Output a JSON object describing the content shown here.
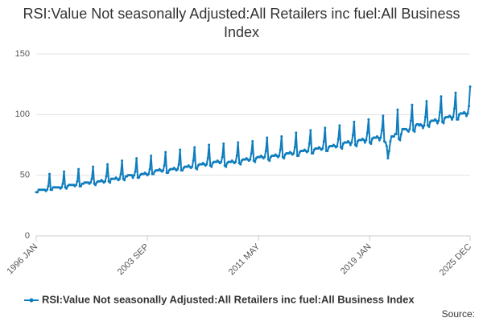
{
  "chart_data": {
    "type": "line",
    "title": "RSI:Value Not seasonally Adjusted:All Retailers inc fuel:All Business Index",
    "source": "Source:",
    "categories": [
      "1996 JAN",
      null,
      null,
      null,
      null,
      null,
      null,
      null,
      null,
      null,
      null,
      null,
      null,
      null,
      null,
      null,
      null,
      null,
      null,
      null,
      null,
      null,
      null,
      null,
      null,
      null,
      null,
      null,
      null,
      null,
      null,
      null,
      null,
      null,
      null,
      null,
      null,
      null,
      null,
      null,
      null,
      null,
      null,
      null,
      null,
      null,
      null,
      null,
      null,
      null,
      null,
      null,
      null,
      null,
      null,
      null,
      null,
      null,
      null,
      null,
      null,
      null,
      null,
      null,
      null,
      null,
      null,
      null,
      null,
      null,
      null,
      null,
      null,
      null,
      null,
      null,
      null,
      null,
      null,
      null,
      null,
      null,
      null,
      null,
      null,
      null,
      null,
      null,
      null,
      null,
      null,
      null,
      "2003 SEP",
      null,
      null,
      null,
      null,
      null,
      null,
      null,
      null,
      null,
      null,
      null,
      null,
      null,
      null,
      null,
      null,
      null,
      null,
      null,
      null,
      null,
      null,
      null,
      null,
      null,
      null,
      null,
      null,
      null,
      null,
      null,
      null,
      null,
      null,
      null,
      null,
      null,
      null,
      null,
      null,
      null,
      null,
      null,
      null,
      null,
      null,
      null,
      null,
      null,
      null,
      null,
      null,
      null,
      null,
      null,
      null,
      null,
      null,
      null,
      null,
      null,
      null,
      null,
      null,
      null,
      null,
      null,
      null,
      null,
      null,
      null,
      null,
      null,
      null,
      null,
      null,
      null,
      null,
      null,
      null,
      null,
      null,
      null,
      null,
      null,
      null,
      null,
      null,
      null,
      null,
      null,
      "2011 MAY",
      null,
      null,
      null,
      null,
      null,
      null,
      null,
      null,
      null,
      null,
      null,
      null,
      null,
      null,
      null,
      null,
      null,
      null,
      null,
      null,
      null,
      null,
      null,
      null,
      null,
      null,
      null,
      null,
      null,
      null,
      null,
      null,
      null,
      null,
      null,
      null,
      null,
      null,
      null,
      null,
      null,
      null,
      null,
      null,
      null,
      null,
      null,
      null,
      null,
      null,
      null,
      null,
      null,
      null,
      null,
      null,
      null,
      null,
      null,
      null,
      null,
      null,
      null,
      null,
      null,
      null,
      null,
      null,
      null,
      null,
      null,
      null,
      null,
      null,
      null,
      null,
      null,
      null,
      null,
      null,
      null,
      null,
      null,
      null,
      null,
      null,
      null,
      null,
      null,
      null,
      null,
      "2019 JAN",
      null,
      null,
      null,
      null,
      null,
      null,
      null,
      null,
      null,
      null,
      null,
      null,
      null,
      null,
      null,
      null,
      null,
      null,
      null,
      null,
      null,
      null,
      null,
      null,
      null,
      null,
      null,
      null,
      null,
      null,
      null,
      null,
      null,
      null,
      null,
      null,
      null,
      null,
      null,
      null,
      null,
      null,
      null,
      null,
      null,
      null,
      null,
      null,
      null,
      null,
      null,
      null,
      null,
      null,
      null,
      null,
      null,
      null,
      null,
      null,
      null,
      null,
      null,
      null,
      null,
      null,
      null,
      null,
      null,
      null,
      null,
      null,
      null,
      null,
      null,
      null,
      null,
      null,
      null,
      null,
      null,
      null,
      "2025 DEC"
    ],
    "series": [
      {
        "name": "RSI:Value Not seasonally Adjusted:All Retailers inc fuel:All Business Index",
        "color": "#0f7dbd",
        "values": [
          36,
          36,
          38,
          38,
          38,
          38,
          38,
          38,
          37,
          38,
          41,
          51,
          38,
          38,
          40,
          40,
          40,
          40,
          40,
          40,
          39,
          40,
          43,
          53,
          40,
          39,
          41,
          42,
          42,
          42,
          42,
          42,
          41,
          42,
          45,
          55,
          41,
          41,
          43,
          43,
          44,
          44,
          44,
          44,
          43,
          44,
          47,
          57,
          43,
          42,
          44,
          45,
          45,
          45,
          46,
          45,
          44,
          45,
          49,
          59,
          45,
          44,
          47,
          47,
          47,
          47,
          48,
          47,
          46,
          47,
          51,
          62,
          47,
          46,
          49,
          49,
          50,
          50,
          50,
          50,
          48,
          50,
          53,
          64,
          48,
          48,
          50,
          51,
          51,
          51,
          52,
          51,
          50,
          51,
          55,
          66,
          51,
          51,
          53,
          54,
          54,
          54,
          55,
          54,
          53,
          54,
          58,
          69,
          52,
          52,
          54,
          55,
          55,
          55,
          56,
          55,
          54,
          55,
          59,
          71,
          54,
          54,
          56,
          57,
          57,
          57,
          58,
          57,
          56,
          57,
          62,
          73,
          56,
          55,
          58,
          59,
          59,
          59,
          60,
          59,
          58,
          59,
          64,
          75,
          58,
          57,
          60,
          61,
          61,
          61,
          62,
          61,
          60,
          61,
          65,
          76,
          58,
          57,
          60,
          61,
          61,
          61,
          62,
          61,
          60,
          61,
          66,
          77,
          60,
          59,
          62,
          63,
          63,
          63,
          64,
          63,
          62,
          63,
          68,
          78,
          62,
          61,
          64,
          65,
          65,
          65,
          66,
          65,
          64,
          65,
          70,
          81,
          63,
          62,
          65,
          66,
          66,
          66,
          67,
          66,
          65,
          66,
          71,
          82,
          65,
          64,
          67,
          68,
          68,
          68,
          69,
          68,
          67,
          68,
          73,
          85,
          66,
          66,
          69,
          70,
          70,
          70,
          71,
          70,
          69,
          70,
          76,
          87,
          68,
          68,
          71,
          72,
          72,
          72,
          73,
          72,
          71,
          72,
          78,
          89,
          70,
          70,
          73,
          74,
          74,
          74,
          75,
          74,
          73,
          74,
          80,
          91,
          73,
          72,
          76,
          77,
          77,
          77,
          78,
          77,
          75,
          77,
          83,
          94,
          75,
          74,
          78,
          79,
          79,
          79,
          80,
          79,
          77,
          79,
          85,
          96,
          77,
          76,
          80,
          81,
          81,
          81,
          82,
          81,
          79,
          81,
          87,
          99,
          78,
          77,
          74,
          64,
          70,
          78,
          82,
          82,
          82,
          84,
          84,
          104,
          80,
          79,
          84,
          88,
          88,
          88,
          88,
          87,
          86,
          88,
          95,
          108,
          87,
          86,
          91,
          92,
          92,
          91,
          92,
          91,
          89,
          91,
          98,
          111,
          91,
          90,
          94,
          95,
          95,
          95,
          96,
          95,
          93,
          95,
          102,
          115,
          94,
          93,
          97,
          98,
          98,
          98,
          99,
          98,
          96,
          98,
          105,
          118,
          96,
          96,
          100,
          101,
          101,
          101,
          102,
          101,
          99,
          101,
          107,
          123
        ]
      }
    ],
    "ylim": [
      0,
      150
    ],
    "yticks": [
      0,
      50,
      100,
      150
    ],
    "grid": true,
    "legend": "bottom"
  }
}
